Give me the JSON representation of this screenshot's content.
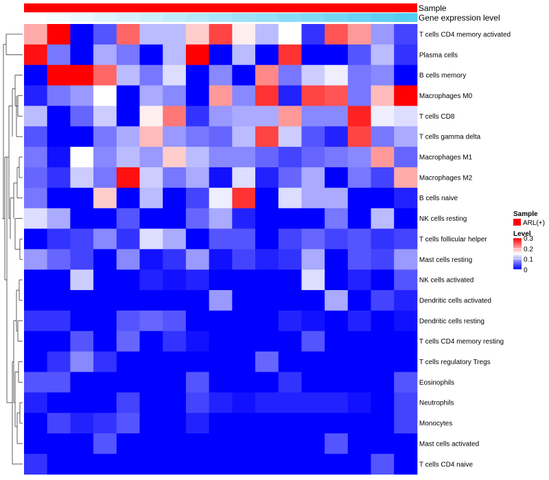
{
  "chart_data": {
    "type": "heatmap",
    "title": "",
    "annotation_tracks": [
      {
        "name": "Sample",
        "color": "#ff0000"
      },
      {
        "name": "Gene expression level",
        "gradient": [
          "#ffffff",
          "#55ccf2"
        ]
      }
    ],
    "rows": [
      "T cells CD4 memory activated",
      "Plasma cells",
      "B cells memory",
      "Macrophages M0",
      "T cells CD8",
      "T cells gamma delta",
      "Macrophages M1",
      "Macrophages M2",
      "B cells naive",
      "NK cells resting",
      "T cells follicular helper",
      "Mast cells resting",
      "NK cells activated",
      "Dendritic cells activated",
      "Dendritic cells resting",
      "T cells CD4 memory resting",
      "T cells regulatory  Tregs",
      "Eosinophils",
      "Neutrophils",
      "Monocytes",
      "Mast cells activated",
      "T cells CD4 naive"
    ],
    "n_columns": 17,
    "values": [
      [
        0.2,
        0.3,
        0.0,
        0.05,
        0.24,
        0.11,
        0.11,
        0.18,
        0.26,
        0.16,
        0.11,
        0.15,
        0.03,
        0.25,
        0.21,
        0.09,
        0.04
      ],
      [
        0.29,
        0.07,
        0.0,
        0.1,
        0.07,
        0.0,
        0.11,
        0.3,
        0.0,
        0.11,
        0.0,
        0.27,
        0.0,
        0.0,
        0.05,
        0.11,
        0.03
      ],
      [
        0.0,
        0.3,
        0.3,
        0.24,
        0.11,
        0.07,
        0.13,
        0.0,
        0.08,
        0.0,
        0.22,
        0.07,
        0.12,
        0.14,
        0.07,
        0.08,
        0.0
      ],
      [
        0.02,
        0.07,
        0.09,
        0.15,
        0.0,
        0.1,
        0.08,
        0.0,
        0.21,
        0.08,
        0.27,
        0.02,
        0.26,
        0.25,
        0.07,
        0.19,
        0.3
      ],
      [
        0.11,
        0.0,
        0.06,
        0.12,
        0.0,
        0.16,
        0.23,
        0.03,
        0.09,
        0.1,
        0.1,
        0.21,
        0.08,
        0.08,
        0.28,
        0.14,
        0.13
      ],
      [
        0.05,
        0.0,
        0.0,
        0.07,
        0.1,
        0.19,
        0.09,
        0.07,
        0.06,
        0.11,
        0.26,
        0.12,
        0.05,
        0.02,
        0.26,
        0.07,
        0.1
      ],
      [
        0.07,
        0.01,
        0.15,
        0.08,
        0.11,
        0.09,
        0.18,
        0.11,
        0.08,
        0.08,
        0.06,
        0.04,
        0.06,
        0.07,
        0.08,
        0.21,
        0.06
      ],
      [
        0.06,
        0.03,
        0.12,
        0.07,
        0.29,
        0.12,
        0.07,
        0.1,
        0.01,
        0.13,
        0.02,
        0.06,
        0.1,
        0.0,
        0.07,
        0.04,
        0.2
      ],
      [
        0.07,
        0.0,
        0.0,
        0.18,
        0.0,
        0.11,
        0.0,
        0.04,
        0.14,
        0.27,
        0.0,
        0.13,
        0.1,
        0.1,
        0.0,
        0.0,
        0.02
      ],
      [
        0.13,
        0.1,
        0.0,
        0.0,
        0.05,
        0.0,
        0.0,
        0.06,
        0.1,
        0.02,
        0.0,
        0.0,
        0.0,
        0.07,
        0.0,
        0.11,
        0.0
      ],
      [
        0.0,
        0.03,
        0.04,
        0.08,
        0.03,
        0.13,
        0.1,
        0.0,
        0.05,
        0.05,
        0.0,
        0.04,
        0.06,
        0.04,
        0.05,
        0.03,
        0.04
      ],
      [
        0.09,
        0.06,
        0.04,
        0.0,
        0.08,
        0.01,
        0.03,
        0.09,
        0.01,
        0.04,
        0.02,
        0.03,
        0.1,
        0.0,
        0.05,
        0.04,
        0.09
      ],
      [
        0.0,
        0.0,
        0.12,
        0.0,
        0.0,
        0.02,
        0.01,
        0.02,
        0.0,
        0.0,
        0.0,
        0.0,
        0.13,
        0.0,
        0.02,
        0.0,
        0.05
      ],
      [
        0.0,
        0.0,
        0.0,
        0.0,
        0.0,
        0.0,
        0.0,
        0.0,
        0.09,
        0.0,
        0.0,
        0.0,
        0.0,
        0.1,
        0.0,
        0.04,
        0.02
      ],
      [
        0.03,
        0.03,
        0.0,
        0.0,
        0.05,
        0.06,
        0.05,
        0.0,
        0.0,
        0.0,
        0.0,
        0.02,
        0.01,
        0.0,
        0.02,
        0.0,
        0.01
      ],
      [
        0.0,
        0.0,
        0.05,
        0.0,
        0.06,
        0.0,
        0.03,
        0.01,
        0.0,
        0.0,
        0.0,
        0.0,
        0.05,
        0.0,
        0.0,
        0.0,
        0.0
      ],
      [
        0.0,
        0.03,
        0.08,
        0.03,
        0.0,
        0.0,
        0.0,
        0.0,
        0.0,
        0.0,
        0.06,
        0.0,
        0.0,
        0.0,
        0.0,
        0.0,
        0.0
      ],
      [
        0.05,
        0.05,
        0.0,
        0.0,
        0.0,
        0.0,
        0.0,
        0.05,
        0.0,
        0.0,
        0.0,
        0.03,
        0.0,
        0.0,
        0.0,
        0.0,
        0.05
      ],
      [
        0.02,
        0.0,
        0.0,
        0.0,
        0.04,
        0.0,
        0.0,
        0.04,
        0.02,
        0.01,
        0.02,
        0.02,
        0.02,
        0.02,
        0.01,
        0.0,
        0.04
      ],
      [
        0.0,
        0.04,
        0.02,
        0.03,
        0.05,
        0.0,
        0.0,
        0.02,
        0.0,
        0.0,
        0.0,
        0.0,
        0.0,
        0.0,
        0.0,
        0.0,
        0.04
      ],
      [
        0.0,
        0.0,
        0.0,
        0.05,
        0.0,
        0.0,
        0.0,
        0.0,
        0.0,
        0.0,
        0.0,
        0.0,
        0.0,
        0.05,
        0.0,
        0.0,
        0.0
      ],
      [
        0.03,
        0.0,
        0.0,
        0.0,
        0.0,
        0.0,
        0.0,
        0.0,
        0.0,
        0.0,
        0.0,
        0.0,
        0.0,
        0.0,
        0.0,
        0.05,
        0.0
      ]
    ],
    "color_scale": {
      "min": 0,
      "max": 0.3,
      "colors": [
        "#0000ff",
        "#ffffff",
        "#ff0000"
      ],
      "mid": 0.15
    },
    "legend": {
      "sample_title": "Sample",
      "sample_label": "ARL(+)",
      "sample_color": "#ff0000",
      "level_title": "Level",
      "ticks": [
        "0.3",
        "0.2",
        "0.1",
        "0"
      ],
      "tick_values": [
        0.3,
        0.2,
        0.1,
        0
      ]
    }
  }
}
